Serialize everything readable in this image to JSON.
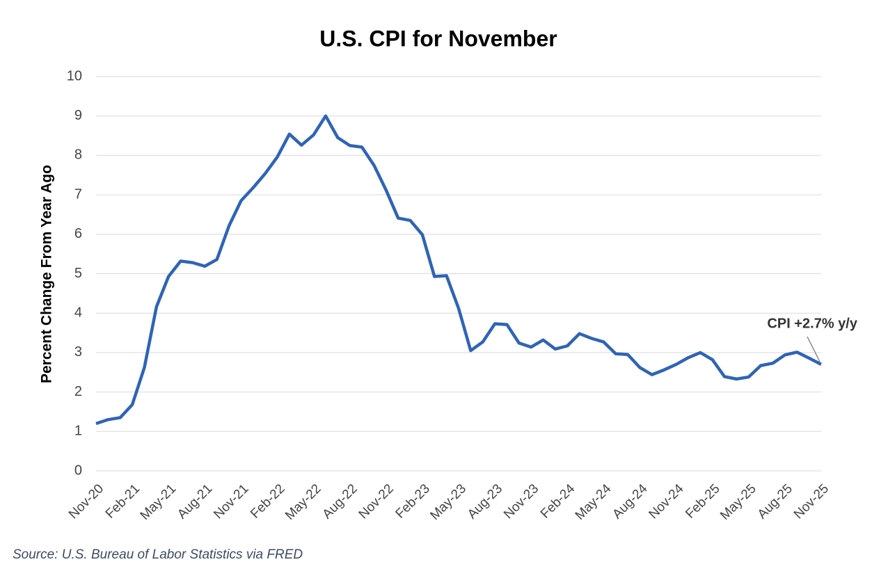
{
  "chart_data": {
    "type": "line",
    "title": "U.S. CPI for November",
    "y_label": "Percent Change From Year Ago",
    "source": "Source: U.S. Bureau of Labor Statistics via FRED",
    "annotation": "CPI +2.7% y/y",
    "color": "#2f64b5",
    "categories": [
      "Nov-20",
      null,
      null,
      "Feb-21",
      null,
      null,
      "May-21",
      null,
      null,
      "Aug-21",
      null,
      null,
      "Nov-21",
      null,
      null,
      "Feb-22",
      null,
      null,
      "May-22",
      null,
      null,
      "Aug-22",
      null,
      null,
      "Nov-22",
      null,
      null,
      "Feb-23",
      null,
      null,
      "May-23",
      null,
      null,
      "Aug-23",
      null,
      null,
      "Nov-23",
      null,
      null,
      "Feb-24",
      null,
      null,
      "May-24",
      null,
      null,
      "Aug-24",
      null,
      null,
      "Nov-24",
      null,
      null,
      "Feb-25",
      null,
      null,
      "May-25",
      null,
      null,
      "Aug-25",
      null,
      null,
      "Nov-25"
    ],
    "values": [
      1.2,
      1.3,
      1.35,
      1.68,
      2.62,
      4.16,
      4.93,
      5.32,
      5.28,
      5.19,
      5.36,
      6.21,
      6.85,
      7.18,
      7.54,
      7.96,
      8.54,
      8.26,
      8.52,
      9.0,
      8.45,
      8.25,
      8.21,
      7.75,
      7.12,
      6.41,
      6.35,
      5.99,
      4.93,
      4.95,
      4.12,
      3.05,
      3.27,
      3.73,
      3.71,
      3.24,
      3.14,
      3.32,
      3.09,
      3.17,
      3.48,
      3.36,
      3.27,
      2.97,
      2.95,
      2.62,
      2.44,
      2.56,
      2.7,
      2.87,
      3.0,
      2.82,
      2.39,
      2.33,
      2.38,
      2.67,
      2.73,
      2.94,
      3.01,
      2.86,
      2.7
    ],
    "ylim": [
      0,
      10
    ],
    "yticks": [
      0,
      1,
      2,
      3,
      4,
      5,
      6,
      7,
      8,
      9,
      10
    ],
    "grid": true
  }
}
